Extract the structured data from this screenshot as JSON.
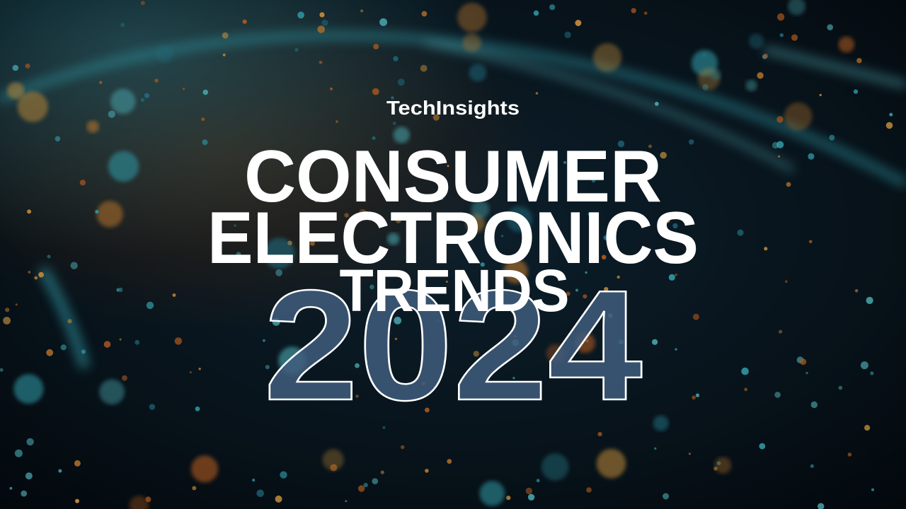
{
  "brand": "TechInsights",
  "title": {
    "line1": "CONSUMER",
    "line2": "ELECTRONICS",
    "line3": "TRENDS"
  },
  "year": "2024"
}
